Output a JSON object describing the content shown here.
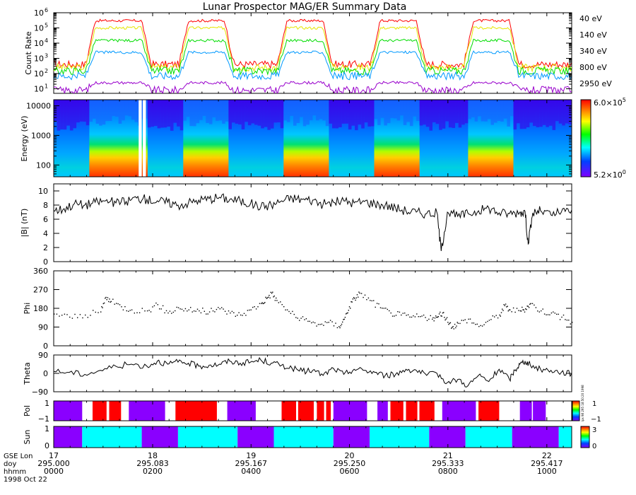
{
  "title": "Lunar Prospector MAG/ER Summary Data",
  "colors": {
    "red": "#ff0000",
    "yellow": "#ffff00",
    "green": "#00ff00",
    "blue": "#0099ff",
    "purple": "#9900cc",
    "cyan": "#00ffff",
    "violet": "#8a00ff"
  },
  "chart_data": [
    {
      "type": "line",
      "panel": "count-rate",
      "ylabel": "Count Rate",
      "yscale": "log",
      "ylim": [
        5,
        1000000
      ],
      "yticks": [
        {
          "value": 10,
          "label": "10",
          "exp": "1"
        },
        {
          "value": 100,
          "label": "10",
          "exp": "2"
        },
        {
          "value": 1000,
          "label": "10",
          "exp": "3"
        },
        {
          "value": 10000,
          "label": "10",
          "exp": "4"
        },
        {
          "value": 100000,
          "label": "10",
          "exp": "5"
        },
        {
          "value": 1000000,
          "label": "10",
          "exp": "6"
        }
      ],
      "x_range": [
        0,
        100
      ],
      "plateaus": [
        [
          8,
          17
        ],
        [
          26,
          33
        ],
        [
          45,
          52
        ],
        [
          63,
          70
        ],
        [
          81,
          88
        ]
      ],
      "series": [
        {
          "name": "40 eV",
          "color": "#ff0000",
          "high": 300000,
          "low": 400
        },
        {
          "name": "140 eV",
          "color": "#e6e600",
          "high": 100000,
          "low": 250
        },
        {
          "name": "340 eV",
          "color": "#00dd00",
          "high": 15000,
          "low": 150
        },
        {
          "name": "800 eV",
          "color": "#0099ff",
          "high": 2500,
          "low": 70
        },
        {
          "name": "2950 eV",
          "color": "#9900cc",
          "high": 25,
          "low": 8
        }
      ]
    },
    {
      "type": "heatmap",
      "panel": "energy-spectrogram",
      "ylabel": "Energy (eV)",
      "yscale": "log",
      "ylim": [
        40,
        16000
      ],
      "yticks": [
        {
          "value": 100,
          "label": "100"
        },
        {
          "value": 1000,
          "label": "1000"
        },
        {
          "value": 10000,
          "label": "10000"
        }
      ],
      "colorbar": {
        "max_mant": "6.0×10",
        "max_exp": "5",
        "min_mant": "5.2×10",
        "min_exp": "0"
      }
    },
    {
      "type": "line",
      "panel": "field-magnitude",
      "ylabel": "|B| (nT)",
      "ylim": [
        0,
        11
      ],
      "yticks": [
        0,
        2,
        4,
        6,
        8,
        10
      ],
      "points": [
        [
          0,
          7.2
        ],
        [
          2,
          7.5
        ],
        [
          4,
          8.2
        ],
        [
          6,
          8.0
        ],
        [
          8,
          8.4
        ],
        [
          10,
          8.6
        ],
        [
          12,
          8.3
        ],
        [
          14,
          8.5
        ],
        [
          16,
          9.0
        ],
        [
          18,
          8.8
        ],
        [
          20,
          8.6
        ],
        [
          22,
          8.4
        ],
        [
          24,
          8.0
        ],
        [
          26,
          8.3
        ],
        [
          28,
          8.7
        ],
        [
          30,
          8.9
        ],
        [
          32,
          9.1
        ],
        [
          34,
          8.8
        ],
        [
          36,
          8.6
        ],
        [
          38,
          8.2
        ],
        [
          40,
          7.8
        ],
        [
          42,
          8.0
        ],
        [
          44,
          8.6
        ],
        [
          46,
          9.0
        ],
        [
          48,
          8.8
        ],
        [
          50,
          8.7
        ],
        [
          52,
          8.1
        ],
        [
          54,
          8.4
        ],
        [
          56,
          8.6
        ],
        [
          58,
          8.3
        ],
        [
          60,
          8.5
        ],
        [
          62,
          8.2
        ],
        [
          64,
          8.0
        ],
        [
          66,
          7.6
        ],
        [
          68,
          7.2
        ],
        [
          70,
          7.0
        ],
        [
          72,
          6.8
        ],
        [
          74,
          6.9
        ],
        [
          74.8,
          1.5
        ],
        [
          76,
          7.0
        ],
        [
          78,
          6.4
        ],
        [
          80,
          6.8
        ],
        [
          82,
          7.2
        ],
        [
          84,
          7.6
        ],
        [
          86,
          6.9
        ],
        [
          88,
          6.8
        ],
        [
          90,
          7.0
        ],
        [
          91,
          7.1
        ],
        [
          91.6,
          2.5
        ],
        [
          92.5,
          6.9
        ],
        [
          94,
          7.2
        ],
        [
          96,
          6.6
        ],
        [
          98,
          7.0
        ],
        [
          100,
          7.3
        ]
      ]
    },
    {
      "type": "scatter",
      "panel": "phi",
      "ylabel": "Phi",
      "ylim": [
        0,
        360
      ],
      "yticks": [
        0,
        90,
        180,
        270,
        360
      ],
      "points": [
        [
          0,
          155
        ],
        [
          3,
          140
        ],
        [
          6,
          150
        ],
        [
          9,
          165
        ],
        [
          10,
          235
        ],
        [
          11,
          215
        ],
        [
          13,
          190
        ],
        [
          15,
          175
        ],
        [
          18,
          170
        ],
        [
          20,
          200
        ],
        [
          22,
          160
        ],
        [
          24,
          185
        ],
        [
          26,
          175
        ],
        [
          28,
          170
        ],
        [
          30,
          165
        ],
        [
          32,
          180
        ],
        [
          34,
          160
        ],
        [
          36,
          150
        ],
        [
          38,
          175
        ],
        [
          40,
          205
        ],
        [
          41,
          230
        ],
        [
          42,
          255
        ],
        [
          43,
          220
        ],
        [
          45,
          175
        ],
        [
          47,
          135
        ],
        [
          49,
          120
        ],
        [
          51,
          105
        ],
        [
          53,
          115
        ],
        [
          55,
          95
        ],
        [
          56,
          130
        ],
        [
          57,
          190
        ],
        [
          58,
          230
        ],
        [
          59,
          255
        ],
        [
          61,
          220
        ],
        [
          63,
          185
        ],
        [
          65,
          160
        ],
        [
          67,
          150
        ],
        [
          69,
          140
        ],
        [
          71,
          145
        ],
        [
          73,
          130
        ],
        [
          74,
          140
        ],
        [
          75,
          160
        ],
        [
          76,
          115
        ],
        [
          77,
          95
        ],
        [
          78,
          110
        ],
        [
          80,
          130
        ],
        [
          82,
          95
        ],
        [
          84,
          125
        ],
        [
          86,
          150
        ],
        [
          87,
          195
        ],
        [
          88,
          175
        ],
        [
          90,
          170
        ],
        [
          91,
          180
        ],
        [
          92,
          205
        ],
        [
          94,
          170
        ],
        [
          96,
          160
        ],
        [
          98,
          140
        ],
        [
          100,
          115
        ]
      ]
    },
    {
      "type": "line",
      "panel": "theta",
      "ylabel": "Theta",
      "ylim": [
        -90,
        90
      ],
      "yticks": [
        {
          "value": -90,
          "label": "−90"
        },
        {
          "value": 0,
          "label": "0"
        },
        {
          "value": 90,
          "label": "90"
        }
      ],
      "points": [
        [
          0,
          10
        ],
        [
          3,
          5
        ],
        [
          6,
          -5
        ],
        [
          9,
          15
        ],
        [
          12,
          35
        ],
        [
          15,
          45
        ],
        [
          18,
          35
        ],
        [
          20,
          60
        ],
        [
          22,
          45
        ],
        [
          24,
          55
        ],
        [
          26,
          50
        ],
        [
          28,
          35
        ],
        [
          30,
          40
        ],
        [
          32,
          45
        ],
        [
          34,
          60
        ],
        [
          36,
          50
        ],
        [
          38,
          55
        ],
        [
          40,
          65
        ],
        [
          42,
          50
        ],
        [
          44,
          40
        ],
        [
          46,
          25
        ],
        [
          48,
          10
        ],
        [
          50,
          15
        ],
        [
          52,
          -10
        ],
        [
          54,
          25
        ],
        [
          56,
          -5
        ],
        [
          58,
          20
        ],
        [
          60,
          15
        ],
        [
          62,
          5
        ],
        [
          64,
          -10
        ],
        [
          66,
          -5
        ],
        [
          68,
          20
        ],
        [
          70,
          15
        ],
        [
          72,
          -10
        ],
        [
          74,
          0
        ],
        [
          76,
          -45
        ],
        [
          78,
          -30
        ],
        [
          80,
          -60
        ],
        [
          82,
          -10
        ],
        [
          84,
          -40
        ],
        [
          86,
          20
        ],
        [
          88,
          -30
        ],
        [
          89,
          15
        ],
        [
          90,
          45
        ],
        [
          91,
          60
        ],
        [
          92,
          40
        ],
        [
          94,
          20
        ],
        [
          96,
          15
        ],
        [
          98,
          5
        ],
        [
          100,
          0
        ]
      ]
    },
    {
      "type": "heatmap",
      "panel": "polarity",
      "ylabel": "Pol",
      "yticks": [
        {
          "value": -1,
          "label": "−1"
        },
        {
          "value": 1,
          "label": "1"
        }
      ],
      "colorbar": {
        "max": "1",
        "min": "−1",
        "corner_text": "lps 98 295 18:50:20 1998"
      },
      "segments": [
        {
          "from": 0,
          "to": 5.5,
          "state": "away"
        },
        {
          "from": 7.5,
          "to": 13,
          "state": "toward"
        },
        {
          "from": 14.5,
          "to": 21.5,
          "state": "away"
        },
        {
          "from": 23.5,
          "to": 31.5,
          "state": "toward"
        },
        {
          "from": 33.5,
          "to": 39,
          "state": "away"
        },
        {
          "from": 44,
          "to": 53.5,
          "state": "toward"
        },
        {
          "from": 54,
          "to": 60.5,
          "state": "away"
        },
        {
          "from": 62.5,
          "to": 64.5,
          "state": "away"
        },
        {
          "from": 65,
          "to": 73.5,
          "state": "toward"
        },
        {
          "from": 75,
          "to": 81.5,
          "state": "away"
        },
        {
          "from": 82,
          "to": 86,
          "state": "toward"
        },
        {
          "from": 90,
          "to": 95,
          "state": "away"
        }
      ]
    },
    {
      "type": "heatmap",
      "panel": "sun",
      "ylabel": "Sun",
      "yticks": [
        {
          "value": 0,
          "label": "0"
        },
        {
          "value": 1,
          "label": "1"
        }
      ],
      "colorbar": {
        "max": "3",
        "min": "0"
      },
      "segments": [
        {
          "from": 0,
          "to": 5.5,
          "state": "dark"
        },
        {
          "from": 5.5,
          "to": 17,
          "state": "sunlit"
        },
        {
          "from": 17,
          "to": 24,
          "state": "dark"
        },
        {
          "from": 24,
          "to": 35.5,
          "state": "sunlit"
        },
        {
          "from": 35.5,
          "to": 42.5,
          "state": "dark"
        },
        {
          "from": 42.5,
          "to": 54,
          "state": "sunlit"
        },
        {
          "from": 54,
          "to": 61,
          "state": "dark"
        },
        {
          "from": 61,
          "to": 72.5,
          "state": "sunlit"
        },
        {
          "from": 72.5,
          "to": 79.5,
          "state": "dark"
        },
        {
          "from": 79.5,
          "to": 88.5,
          "state": "sunlit"
        },
        {
          "from": 88.5,
          "to": 97.5,
          "state": "dark"
        },
        {
          "from": 97.5,
          "to": 100,
          "state": "sunlit"
        }
      ]
    }
  ],
  "x_axis": {
    "row_labels": [
      "GSE Lon",
      "doy",
      "hhmm",
      "1998 Oct 22"
    ],
    "ticks": [
      {
        "pos": 0,
        "lon": "17",
        "doy": "295.000",
        "hhmm": "0000"
      },
      {
        "pos": 19.1,
        "lon": "18",
        "doy": "295.083",
        "hhmm": "0200"
      },
      {
        "pos": 38.1,
        "lon": "19",
        "doy": "295.167",
        "hhmm": "0400"
      },
      {
        "pos": 57.1,
        "lon": "20",
        "doy": "295.250",
        "hhmm": "0600"
      },
      {
        "pos": 76.1,
        "lon": "21",
        "doy": "295.333",
        "hhmm": "0800"
      },
      {
        "pos": 95.2,
        "lon": "22",
        "doy": "295.417",
        "hhmm": "1000"
      }
    ]
  }
}
